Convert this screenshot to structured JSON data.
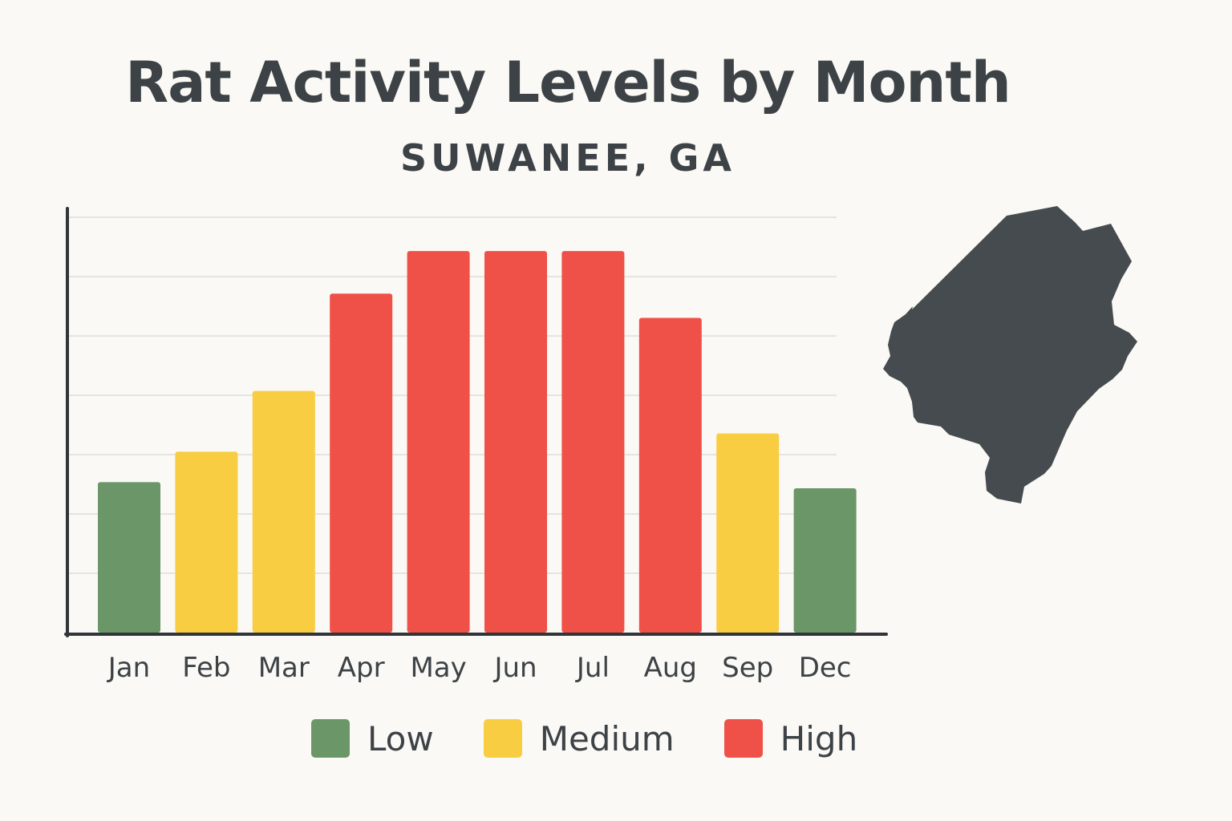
{
  "title": "Rat Activity Levels by Month",
  "subtitle": "SUWANEE, GA",
  "chart_data": {
    "type": "bar",
    "categories": [
      "Jan",
      "Feb",
      "Mar",
      "Apr",
      "May",
      "Jun",
      "Jul",
      "Aug",
      "Sep",
      "Dec"
    ],
    "values": [
      25,
      30,
      40,
      56,
      63,
      63,
      63,
      52,
      33,
      24
    ],
    "levels": [
      "Low",
      "Medium",
      "Medium",
      "High",
      "High",
      "High",
      "High",
      "High",
      "Medium",
      "Low"
    ],
    "ylim": [
      0,
      70
    ],
    "grid": true,
    "y_tick_labels_shown": false,
    "legend_position": "bottom"
  },
  "legend": [
    {
      "label": "Low",
      "color": "#6a9668"
    },
    {
      "label": "Medium",
      "color": "#f9cd42"
    },
    {
      "label": "High",
      "color": "#ef5048"
    }
  ],
  "colors": {
    "Low": "#6a9668",
    "Medium": "#f9cd42",
    "High": "#ef5048",
    "text": "#3c4246",
    "axis": "#2f3538",
    "grid": "#e6e4e0",
    "map": "#454b4f",
    "background": "#fbf9f5"
  },
  "map_icon": "county-silhouette"
}
